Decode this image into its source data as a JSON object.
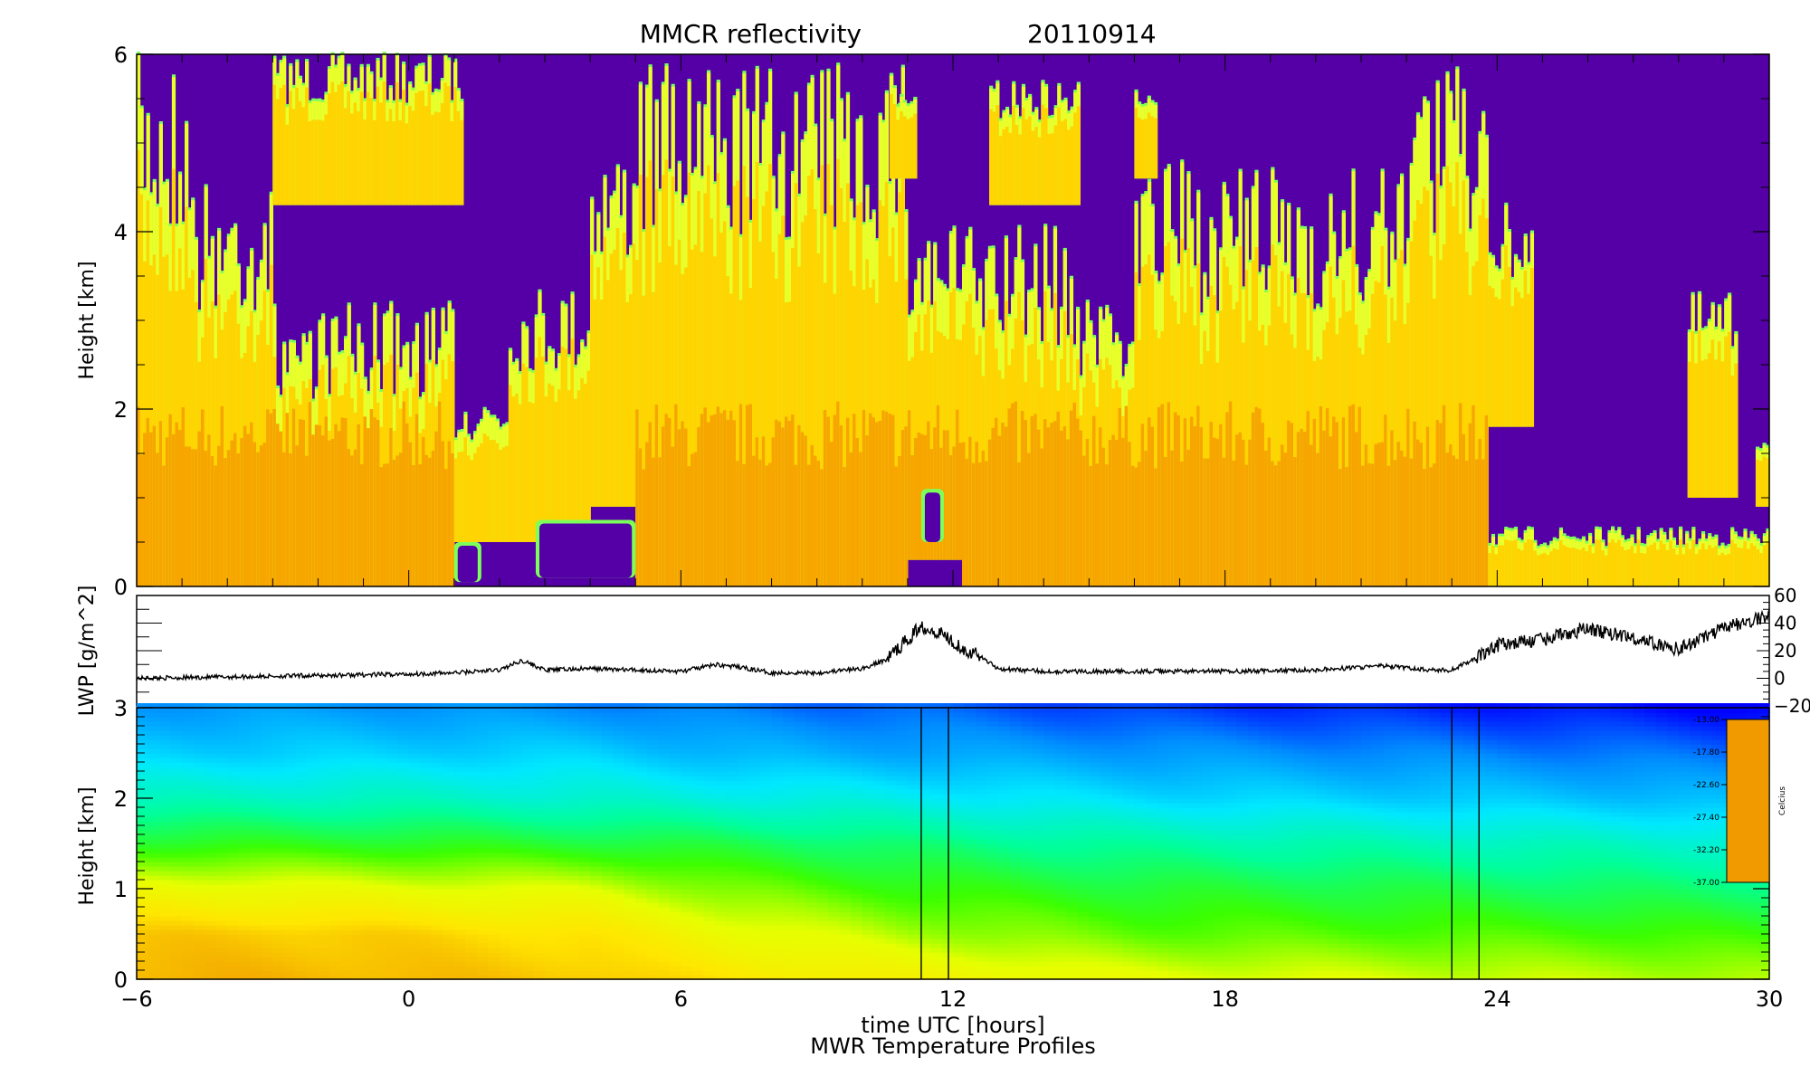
{
  "figure": {
    "title_left": "MMCR reflectivity",
    "title_right": "20110914",
    "xlabel": "time UTC [hours]",
    "footer": "MWR Temperature Profiles"
  },
  "chart_data": [
    {
      "id": "reflectivity",
      "type": "heatmap",
      "title": "MMCR reflectivity 20110914",
      "xlabel": "time UTC [hours]",
      "ylabel": "Height [km]",
      "xlim": [
        -6,
        30
      ],
      "ylim": [
        0,
        6
      ],
      "x_ticks": [
        -6,
        0,
        6,
        12,
        18,
        24,
        30
      ],
      "y_ticks": [
        0,
        2,
        4,
        6
      ],
      "background_color": "#5500a6",
      "colors": {
        "core": "#f7a500",
        "mid": "#ffd400",
        "edge": "#eaff2a",
        "rim": "#7cff5a"
      },
      "cloud_columns": [
        {
          "x0": -6.0,
          "x1": -4.8,
          "top": 6.0,
          "base": 0.0
        },
        {
          "x0": -4.8,
          "x1": -3.0,
          "top": 4.6,
          "base": 0.0
        },
        {
          "x0": -3.0,
          "x1": 1.2,
          "top": 6.0,
          "base": 4.3
        },
        {
          "x0": -3.0,
          "x1": 1.0,
          "top": 3.2,
          "base": 0.0
        },
        {
          "x0": 1.0,
          "x1": 2.2,
          "top": 2.2,
          "base": 0.5
        },
        {
          "x0": 2.2,
          "x1": 4.0,
          "top": 3.4,
          "base": 0.5
        },
        {
          "x0": 4.0,
          "x1": 5.0,
          "top": 5.0,
          "base": 0.9
        },
        {
          "x0": 5.0,
          "x1": 11.0,
          "top": 5.9,
          "base": 0.0
        },
        {
          "x0": 11.0,
          "x1": 12.2,
          "top": 4.2,
          "base": 0.3
        },
        {
          "x0": 12.2,
          "x1": 14.5,
          "top": 4.1,
          "base": 0.0
        },
        {
          "x0": 14.5,
          "x1": 16.0,
          "top": 3.5,
          "base": 0.0
        },
        {
          "x0": 16.0,
          "x1": 17.3,
          "top": 4.8,
          "base": 0.0
        },
        {
          "x0": 17.3,
          "x1": 22.0,
          "top": 4.7,
          "base": 0.0
        },
        {
          "x0": 22.0,
          "x1": 23.8,
          "top": 5.9,
          "base": 0.0
        },
        {
          "x0": 23.8,
          "x1": 24.8,
          "top": 4.3,
          "base": 1.8
        },
        {
          "x0": 28.2,
          "x1": 29.3,
          "top": 3.3,
          "base": 1.0
        },
        {
          "x0": 29.7,
          "x1": 30.0,
          "top": 1.8,
          "base": 0.9
        },
        {
          "x0": 23.8,
          "x1": 30.0,
          "top": 0.65,
          "base": 0.0
        }
      ],
      "upper_clouds": [
        {
          "x0": 12.8,
          "x1": 14.8,
          "top": 5.7,
          "base": 4.3
        },
        {
          "x0": 10.6,
          "x1": 11.2,
          "top": 5.8,
          "base": 4.6
        },
        {
          "x0": 16.0,
          "x1": 16.5,
          "top": 5.7,
          "base": 4.6
        }
      ],
      "clear_gaps": [
        {
          "x0": 1.0,
          "x1": 1.6,
          "top": 0.5,
          "base": 0.05
        },
        {
          "x0": 2.8,
          "x1": 5.0,
          "top": 0.75,
          "base": 0.1
        },
        {
          "x0": 11.3,
          "x1": 11.8,
          "top": 1.1,
          "base": 0.5
        }
      ]
    },
    {
      "id": "lwp",
      "type": "line",
      "ylabel": "LWP [g/m^2]",
      "xlim": [
        -6,
        30
      ],
      "ylim": [
        -20,
        60
      ],
      "y_ticks": [
        -20,
        0,
        20,
        40,
        60
      ],
      "series": [
        {
          "x": [
            -6,
            -4,
            -2,
            0,
            1,
            2,
            2.5,
            3,
            4,
            5,
            6,
            6.8,
            7.5,
            8,
            9,
            10,
            10.5,
            11,
            11.3,
            11.8,
            12.2,
            12.6,
            13,
            14,
            16,
            18,
            20,
            21.5,
            22.5,
            23,
            23.5,
            24,
            25,
            26,
            27,
            28,
            29,
            30
          ],
          "y": [
            0,
            1,
            2,
            3,
            4,
            6,
            13,
            6,
            7,
            6,
            5,
            10,
            7,
            4,
            4,
            7,
            13,
            28,
            38,
            32,
            22,
            16,
            7,
            5,
            5,
            5,
            6,
            9,
            6,
            6,
            14,
            24,
            28,
            36,
            29,
            21,
            36,
            46
          ]
        }
      ]
    },
    {
      "id": "temperature",
      "type": "heatmap",
      "title": "MWR Temperature Profiles",
      "ylabel": "Height [km]",
      "xlim": [
        -6,
        30
      ],
      "ylim": [
        0,
        3
      ],
      "y_ticks": [
        0,
        1,
        2,
        3
      ],
      "colorbar": {
        "label": "Celcius",
        "ticks": [
          "-13.00",
          "-17.80",
          "-22.60",
          "-27.40",
          "-32.20",
          "-37.00"
        ],
        "stops": [
          "#f09a00",
          "#ffe600",
          "#e6ff00",
          "#3bff00",
          "#00ff9a",
          "#00e8ff",
          "#008cff",
          "#0000ff"
        ]
      },
      "profiles": [
        {
          "x": -6,
          "temps": [
            -14,
            -15,
            -19,
            -24,
            -28,
            -31,
            -33
          ]
        },
        {
          "x": -1,
          "temps": [
            -14.3,
            -15.3,
            -19.5,
            -24,
            -28,
            -31,
            -33
          ]
        },
        {
          "x": 4,
          "temps": [
            -15,
            -16.5,
            -20,
            -24.5,
            -28.5,
            -31,
            -33.5
          ]
        },
        {
          "x": 7,
          "temps": [
            -16.5,
            -19,
            -22,
            -25,
            -29,
            -32,
            -34
          ]
        },
        {
          "x": 11,
          "temps": [
            -18,
            -21,
            -23.5,
            -26,
            -29.5,
            -32.5,
            -34.5
          ]
        },
        {
          "x": 16,
          "temps": [
            -19.5,
            -22.5,
            -24.5,
            -27,
            -30.5,
            -33,
            -35.5
          ]
        },
        {
          "x": 21,
          "temps": [
            -20,
            -22.8,
            -24.8,
            -27.5,
            -31,
            -33.5,
            -36
          ]
        },
        {
          "x": 26,
          "temps": [
            -20.5,
            -23,
            -25.5,
            -28,
            -31.5,
            -34,
            -36.5
          ]
        },
        {
          "x": 30,
          "temps": [
            -21,
            -23.5,
            -26,
            -28.5,
            -32,
            -34.5,
            -37
          ]
        }
      ],
      "marker_lines_x": [
        11.3,
        11.9,
        23.0,
        23.6
      ]
    }
  ]
}
